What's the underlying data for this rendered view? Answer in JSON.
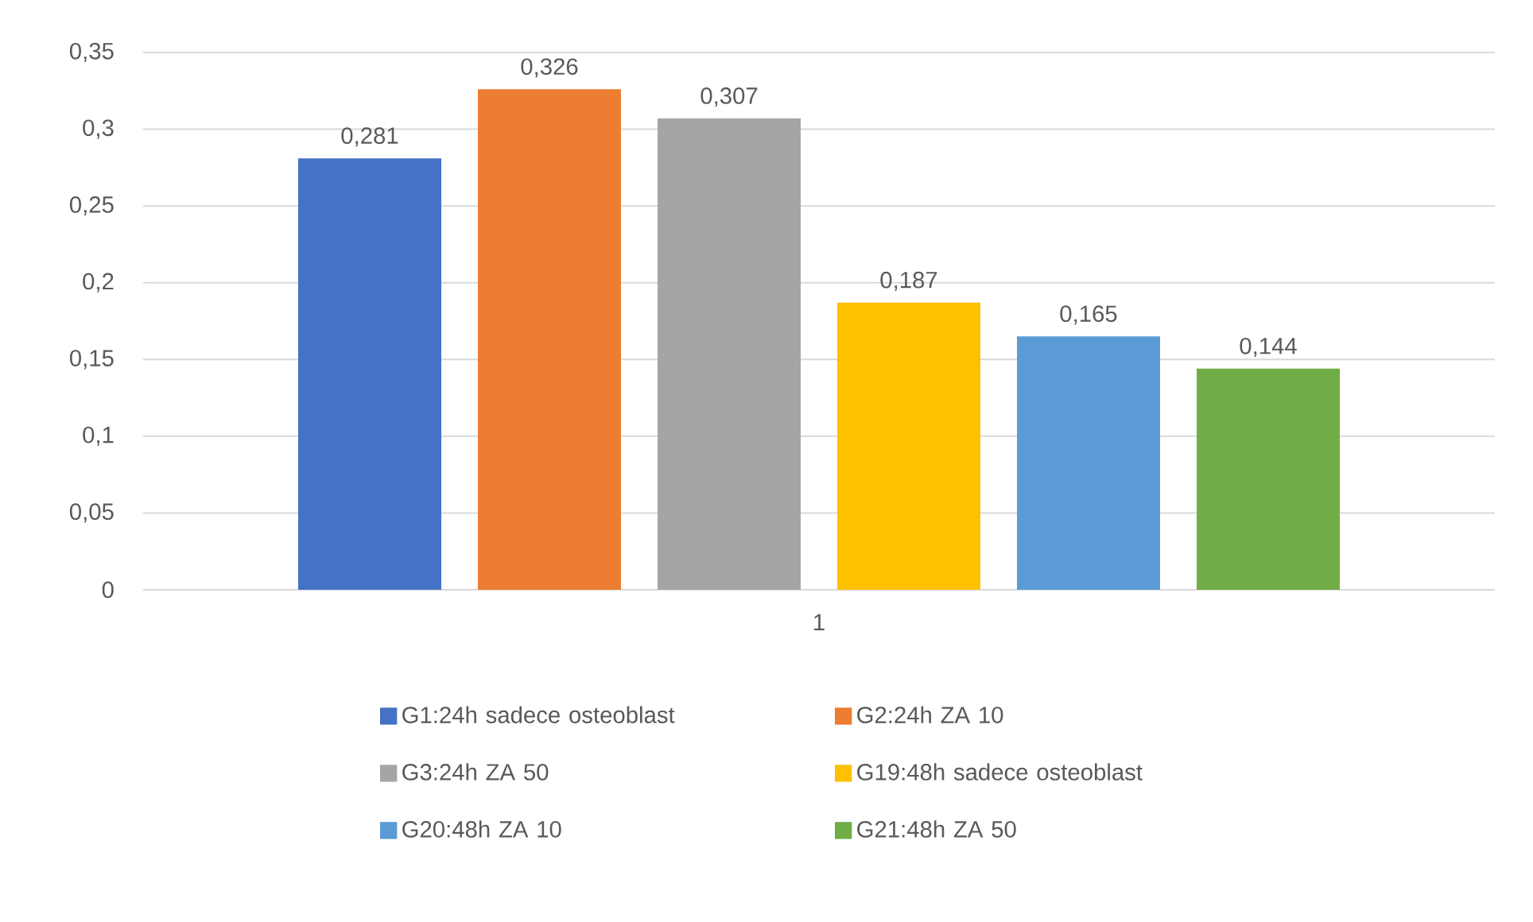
{
  "chart_data": {
    "type": "bar",
    "categories": [
      "1"
    ],
    "series": [
      {
        "name": "G1:24h sadece osteoblast",
        "color": "#4472c4",
        "values": [
          0.281
        ],
        "value_labels": [
          "0,281"
        ]
      },
      {
        "name": "G2:24h ZA 10",
        "color": "#ed7d31",
        "values": [
          0.326
        ],
        "value_labels": [
          "0,326"
        ]
      },
      {
        "name": "G3:24h ZA 50",
        "color": "#a5a5a5",
        "values": [
          0.307
        ],
        "value_labels": [
          "0,307"
        ]
      },
      {
        "name": "G19:48h sadece osteoblast",
        "color": "#ffc000",
        "values": [
          0.187
        ],
        "value_labels": [
          "0,187"
        ]
      },
      {
        "name": "G20:48h ZA 10",
        "color": "#5b9bd5",
        "values": [
          0.165
        ],
        "value_labels": [
          "0,165"
        ]
      },
      {
        "name": "G21:48h ZA 50",
        "color": "#70ad47",
        "values": [
          0.144
        ],
        "value_labels": [
          "0,144"
        ]
      }
    ],
    "ylim": [
      0,
      0.35
    ],
    "yticks": [
      0,
      {
        "value": 0.05,
        "label": "0,05"
      },
      {
        "value": 0.1,
        "label": "0,1"
      },
      {
        "value": 0.15,
        "label": "0,15"
      },
      {
        "value": 0.2,
        "label": "0,2"
      },
      {
        "value": 0.25,
        "label": "0,25"
      },
      {
        "value": 0.3,
        "label": "0,3"
      },
      {
        "value": 0.35,
        "label": "0,35"
      }
    ],
    "grid": "y",
    "legend": "bottom"
  }
}
